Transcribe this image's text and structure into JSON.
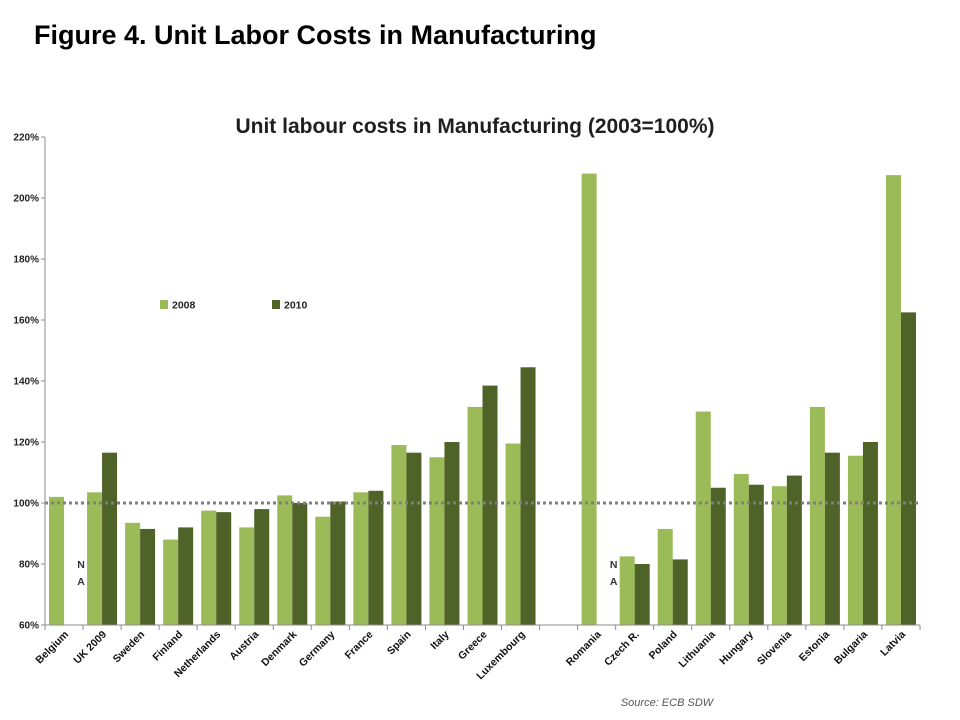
{
  "page": {
    "title": "Figure 4. Unit Labor Costs in Manufacturing"
  },
  "chart_data": {
    "type": "bar",
    "title": "Unit labour costs in Manufacturing (2003=100%)",
    "xlabel": "",
    "ylabel": "",
    "ylim": [
      60,
      220
    ],
    "yticks": [
      60,
      80,
      100,
      120,
      140,
      160,
      180,
      200,
      220
    ],
    "ytick_labels": [
      "60%",
      "80%",
      "100%",
      "120%",
      "140%",
      "160%",
      "180%",
      "200%",
      "220%"
    ],
    "reference_line": 100,
    "legend_placement": "top-left",
    "grid": false,
    "categories": [
      "Belgium",
      "UK 2009",
      "Sweden",
      "Finland",
      "Netherlands",
      "Austria",
      "Denmark",
      "Germany",
      "France",
      "Spain",
      "Italy",
      "Greece",
      "Luxembourg",
      "",
      "Romania",
      "Czech R.",
      "Poland",
      "Lithuania",
      "Hungary",
      "Slovenia",
      "Estonia",
      "Bulgaria",
      "Latvia"
    ],
    "series": [
      {
        "name": "2008",
        "color": "#9bbb59",
        "values": [
          102,
          103.5,
          93.5,
          88,
          97.5,
          92,
          102.5,
          95.5,
          103.5,
          119,
          115,
          131.5,
          119.5,
          null,
          208,
          82.5,
          91.5,
          130,
          109.5,
          105.5,
          131.5,
          115.5,
          207.5
        ]
      },
      {
        "name": "2010",
        "color": "#4f6228",
        "values": [
          null,
          116.5,
          91.5,
          92,
          97,
          98,
          100,
          100.5,
          104,
          116.5,
          120,
          138.5,
          144.5,
          null,
          null,
          80,
          81.5,
          105,
          106,
          109,
          116.5,
          120,
          162.5
        ]
      }
    ],
    "annotations": [
      {
        "category": "UK 2009",
        "text": "N A"
      },
      {
        "category": "Czech R.",
        "text": "N A"
      }
    ],
    "source": "Source: ECB SDW"
  }
}
